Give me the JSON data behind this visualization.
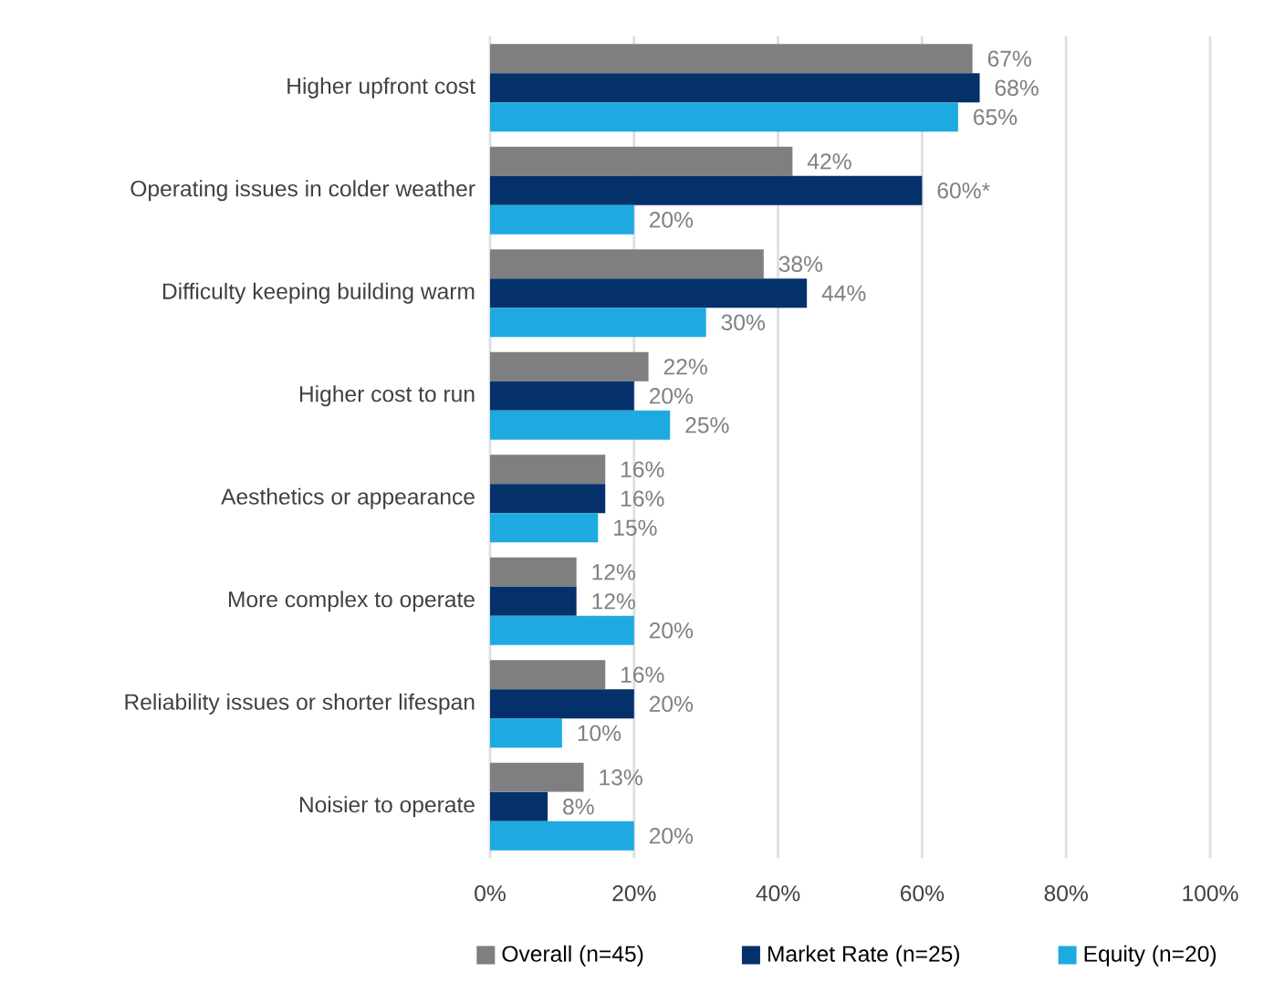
{
  "chart_data": {
    "type": "bar",
    "orientation": "horizontal",
    "categories": [
      "Higher upfront cost",
      "Operating issues in colder weather",
      "Difficulty keeping building warm",
      "Higher cost to run",
      "Aesthetics or appearance",
      "More complex to operate",
      "Reliability issues or shorter lifespan",
      "Noisier to operate"
    ],
    "series": [
      {
        "name": "Overall (n=45)",
        "color": "#7f7f7f",
        "values": [
          67,
          42,
          38,
          22,
          16,
          12,
          16,
          13
        ],
        "value_labels": [
          "67%",
          "42%",
          "38%",
          "22%",
          "16%",
          "12%",
          "16%",
          "13%"
        ]
      },
      {
        "name": "Market Rate (n=25)",
        "color": "#05316b",
        "values": [
          68,
          60,
          44,
          20,
          16,
          12,
          20,
          8
        ],
        "value_labels": [
          "68%",
          "60%*",
          "44%",
          "20%",
          "16%",
          "12%",
          "20%",
          "8%"
        ]
      },
      {
        "name": "Equity (n=20)",
        "color": "#1eaae1",
        "values": [
          65,
          20,
          30,
          25,
          15,
          20,
          10,
          20
        ],
        "value_labels": [
          "65%",
          "20%",
          "30%",
          "25%",
          "15%",
          "20%",
          "10%",
          "20%"
        ]
      }
    ],
    "xlim": [
      0,
      100
    ],
    "xticks": [
      {
        "value": 0,
        "label": "0%"
      },
      {
        "value": 20,
        "label": "20%"
      },
      {
        "value": 40,
        "label": "40%"
      },
      {
        "value": 60,
        "label": "60%"
      },
      {
        "value": 80,
        "label": "80%"
      },
      {
        "value": 100,
        "label": "100%"
      }
    ],
    "grid": "x",
    "legend": "bottom"
  }
}
